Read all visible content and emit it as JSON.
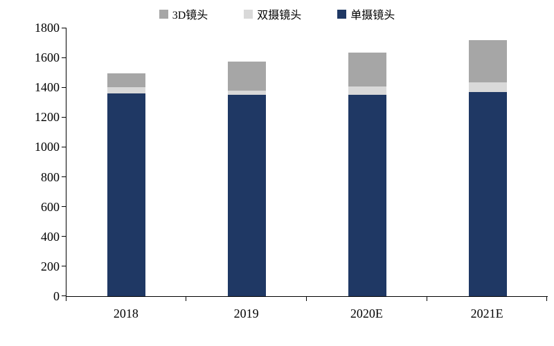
{
  "chart_data": {
    "type": "bar",
    "stacked": true,
    "title": "",
    "xlabel": "",
    "ylabel": "",
    "categories": [
      "2018",
      "2019",
      "2020E",
      "2021E"
    ],
    "series": [
      {
        "name": "单摄镜头",
        "color": "#1F3864",
        "values": [
          1360,
          1350,
          1350,
          1370
        ]
      },
      {
        "name": "双摄镜头",
        "color": "#D9D9D9",
        "values": [
          40,
          30,
          55,
          65
        ]
      },
      {
        "name": "3D镜头",
        "color": "#A6A6A6",
        "values": [
          95,
          195,
          230,
          280
        ]
      }
    ],
    "totals": [
      1495,
      1575,
      1635,
      1715
    ],
    "ylim": [
      0,
      1800
    ],
    "yticks": [
      0,
      200,
      400,
      600,
      800,
      1000,
      1200,
      1400,
      1600,
      1800
    ],
    "grid": false,
    "legend_position": "top"
  },
  "legend": {
    "items": [
      {
        "label": "3D镜头",
        "color": "#A6A6A6"
      },
      {
        "label": "双摄镜头",
        "color": "#D9D9D9"
      },
      {
        "label": "单摄镜头",
        "color": "#1F3864"
      }
    ]
  }
}
